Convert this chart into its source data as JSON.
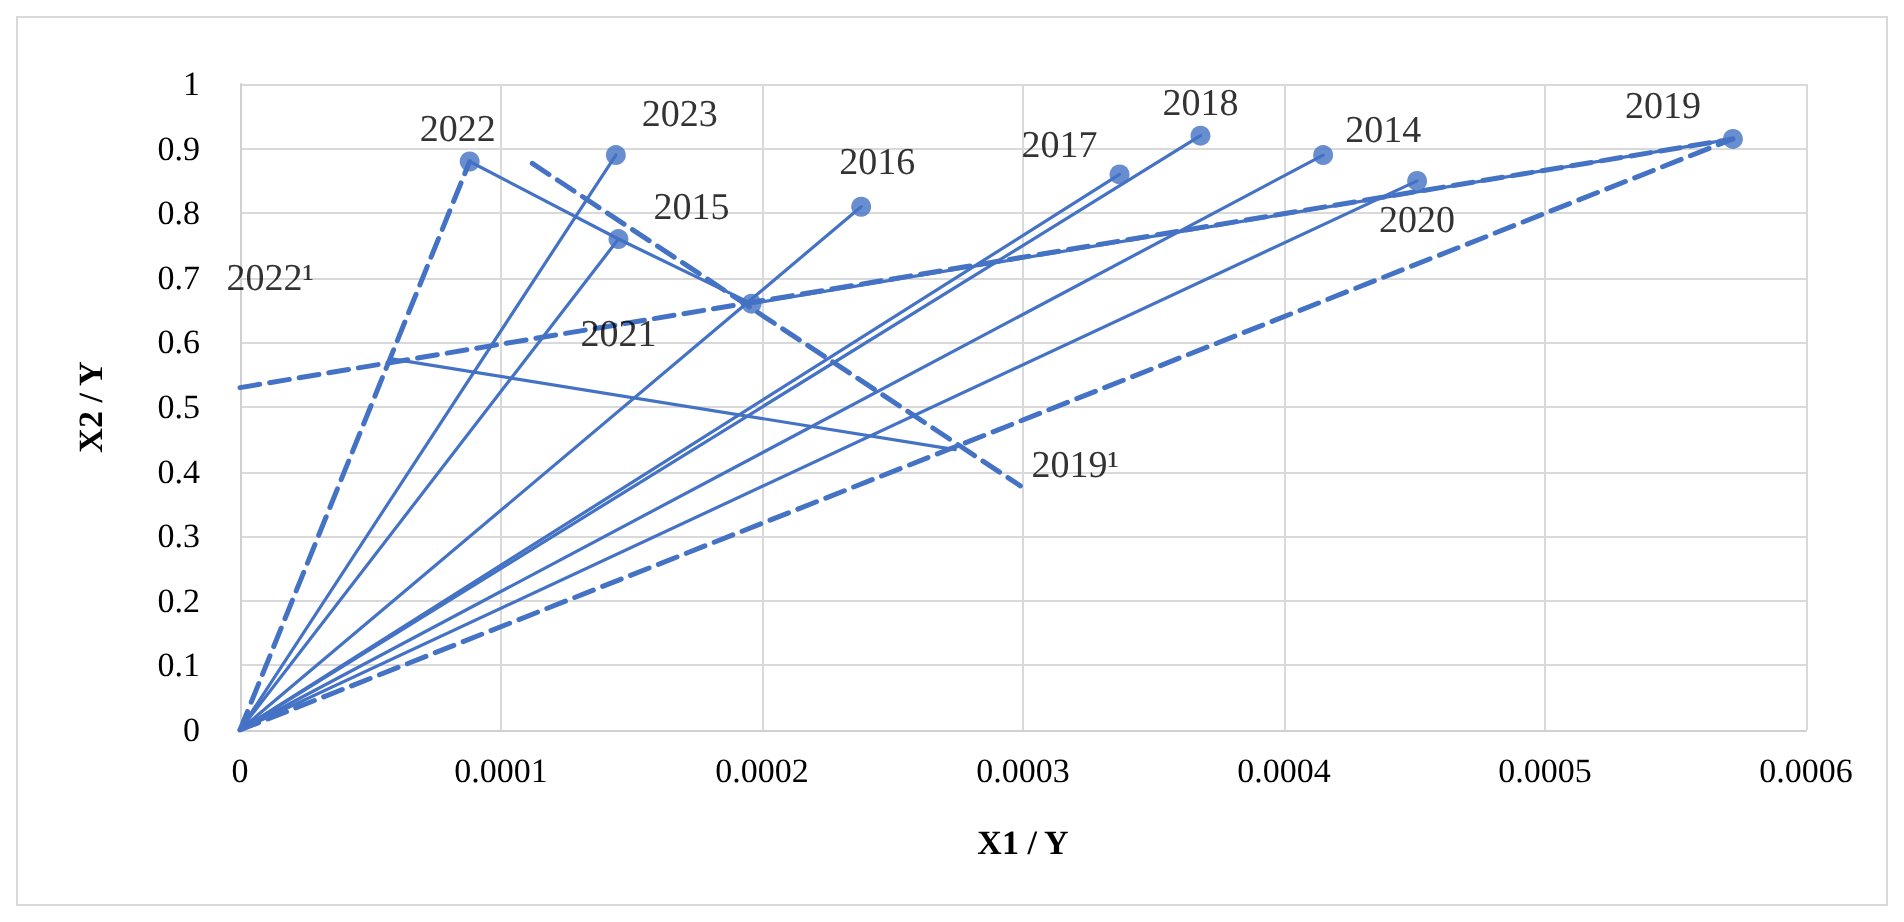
{
  "chart_data": {
    "type": "line",
    "xlabel": "X1 / Y",
    "ylabel": "X2 / Y",
    "xlim": [
      0,
      0.0006
    ],
    "xticks": [
      0,
      0.0001,
      0.0002,
      0.0003,
      0.0004,
      0.0005,
      0.0006
    ],
    "ylim": [
      0,
      1
    ],
    "yticks": [
      0,
      0.1,
      0.2,
      0.3,
      0.4,
      0.5,
      0.6,
      0.7,
      0.8,
      0.9,
      1
    ],
    "grid": true,
    "marker": "none",
    "line_style": "solid",
    "series": [
      {
        "color": "#4472c4",
        "x": [
          0,
          0.000415
        ],
        "values": [
          0,
          0.89
        ]
      },
      {
        "color": "#4472c4",
        "x": [
          0,
          0.000238
        ],
        "values": [
          0,
          0.81
        ]
      },
      {
        "color": "#4472c4",
        "x": [
          0,
          0.000337
        ],
        "values": [
          0,
          0.86
        ]
      },
      {
        "color": "#4472c4",
        "x": [
          0,
          0.000368
        ],
        "values": [
          0,
          0.92
        ]
      },
      {
        "color": "#4472c4",
        "x": [
          0,
          0.000451
        ],
        "values": [
          0,
          0.85
        ]
      },
      {
        "color": "#4472c4",
        "x": [
          0,
          0.000145
        ],
        "values": [
          0,
          0.76
        ]
      },
      {
        "color": "#4472c4",
        "x": [
          0,
          0.000144
        ],
        "values": [
          0,
          0.89
        ]
      },
      {
        "color": "#4472c4",
        "x": [
          8.8e-05,
          0.000145,
          0.000196,
          0.000572
        ],
        "values": [
          0.88,
          0.76,
          0.66,
          0.915
        ]
      },
      {
        "color": "#4472c4",
        "x": [
          5.75e-05,
          0.000274
        ],
        "values": [
          0.575,
          0.434
        ]
      },
      {
        "color": "#4472c4",
        "line_style": "dashed",
        "x": [
          0,
          8.8e-05
        ],
        "values": [
          0,
          0.88
        ]
      },
      {
        "color": "#4472c4",
        "line_style": "dashed",
        "x": [
          0,
          0.000572
        ],
        "values": [
          0.53,
          0.915
        ]
      },
      {
        "color": "#4472c4",
        "line_style": "dashed",
        "x": [
          0,
          0.000572
        ],
        "values": [
          0,
          0.915
        ]
      },
      {
        "color": "#4472c4",
        "line_style": "dashed",
        "x": [
          0.000112,
          0.000299
        ],
        "values": [
          0.877,
          0.378
        ]
      },
      {
        "type": "scatter",
        "marker": "circle",
        "color": "#4472c4",
        "x": [
          0.000415,
          0.000196,
          0.000238,
          0.000337,
          0.000368,
          0.000572,
          0.000451,
          0.000145,
          8.8e-05,
          0.000144
        ],
        "values": [
          0.89,
          0.66,
          0.81,
          0.86,
          0.92,
          0.915,
          0.85,
          0.76,
          0.88,
          0.89
        ]
      }
    ],
    "annotations": [
      {
        "text": "2014",
        "x": 0.000415,
        "y": 0.89
      },
      {
        "text": "2015",
        "x": 0.000196,
        "y": 0.66
      },
      {
        "text": "2016",
        "x": 0.000238,
        "y": 0.81
      },
      {
        "text": "2017",
        "x": 0.000337,
        "y": 0.86
      },
      {
        "text": "2018",
        "x": 0.000368,
        "y": 0.92
      },
      {
        "text": "2019",
        "x": 0.000572,
        "y": 0.915
      },
      {
        "text": "2020",
        "x": 0.000451,
        "y": 0.85
      },
      {
        "text": "2021",
        "x": 0.000145,
        "y": 0.76
      },
      {
        "text": "2022",
        "x": 8.8e-05,
        "y": 0.88
      },
      {
        "text": "2023",
        "x": 0.000144,
        "y": 0.89
      },
      {
        "text": "2022¹",
        "x": 5.75e-05,
        "y": 0.575
      },
      {
        "text": "2019¹",
        "x": 0.000274,
        "y": 0.434
      }
    ]
  }
}
